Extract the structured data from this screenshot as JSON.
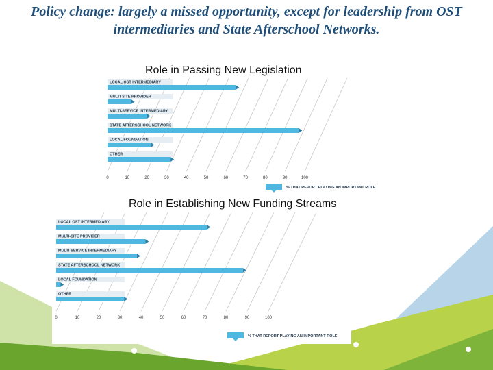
{
  "slide": {
    "title": "Policy change: largely a missed opportunity, except for leadership from OST intermediaries and State Afterschool Networks.",
    "accent_color": "#1f4e79",
    "background_colors": [
      "#6aa62e",
      "#a8c94a",
      "#b7d4e8",
      "#e8f0c8"
    ]
  },
  "chart_data": [
    {
      "type": "bar",
      "orientation": "horizontal",
      "title": "Role in Passing New Legislation",
      "categories": [
        "LOCAL OST INTERMEDIARY",
        "MULTI-SITE PROVIDER",
        "MULTI-SERVICE INTERMEDIARY",
        "STATE AFTERSCHOOL NETWORK",
        "LOCAL FOUNDATION",
        "OTHER"
      ],
      "values": [
        65,
        12,
        20,
        97,
        22,
        32
      ],
      "x_ticks": [
        "0",
        "10",
        "20",
        "30",
        "40",
        "50",
        "60",
        "70",
        "80",
        "90",
        "100"
      ],
      "xlim": [
        0,
        100
      ],
      "legend": "% THAT REPORT PLAYING AN IMPORTANT ROLE",
      "bar_color": "#4fb8e0",
      "grid": true
    },
    {
      "type": "bar",
      "orientation": "horizontal",
      "title": "Role in Establishing New Funding Streams",
      "categories": [
        "LOCAL OST INTERMEDIARY",
        "MULTI-SITE PROVIDER",
        "MULTI-SERVICE INTERMEDIARY",
        "STATE AFTERSCHOOL NETWORK",
        "LOCAL FOUNDATION",
        "OTHER"
      ],
      "values": [
        71,
        42,
        38,
        88,
        2,
        32
      ],
      "x_ticks": [
        "0",
        "10",
        "20",
        "30",
        "40",
        "50",
        "60",
        "70",
        "80",
        "90",
        "100"
      ],
      "xlim": [
        0,
        100
      ],
      "legend": "% THAT REPORT PLAYING AN IMPORTANT ROLE",
      "bar_color": "#4fb8e0",
      "grid": true
    }
  ]
}
